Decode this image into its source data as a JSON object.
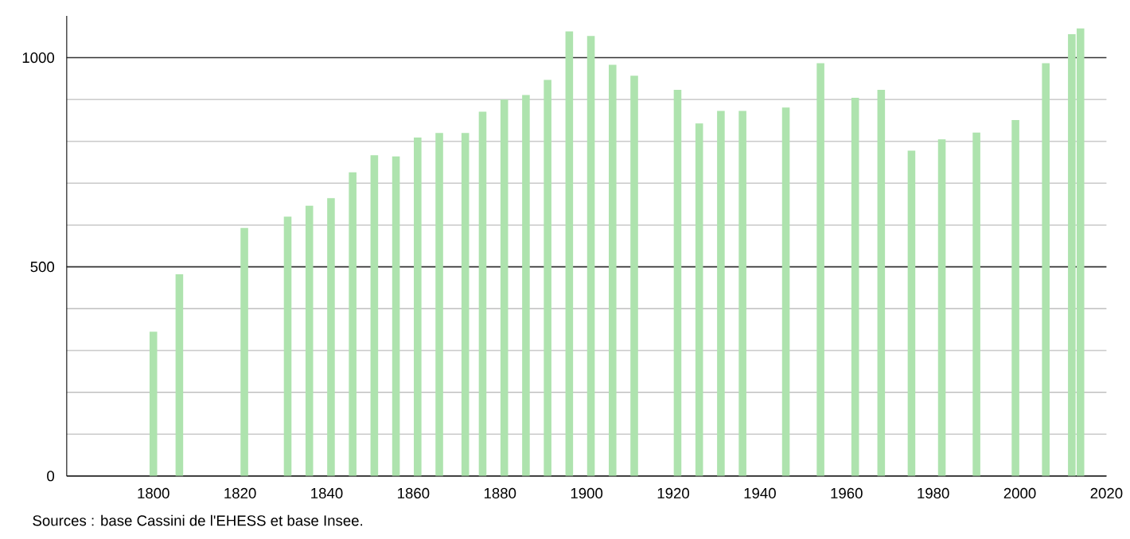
{
  "chart_data": {
    "type": "bar",
    "x": [
      1800,
      1806,
      1821,
      1831,
      1836,
      1841,
      1846,
      1851,
      1856,
      1861,
      1866,
      1872,
      1876,
      1881,
      1886,
      1891,
      1896,
      1901,
      1906,
      1911,
      1921,
      1926,
      1931,
      1936,
      1946,
      1954,
      1962,
      1968,
      1975,
      1982,
      1990,
      1999,
      2006,
      2012,
      2014
    ],
    "values": [
      345,
      482,
      593,
      620,
      646,
      664,
      726,
      767,
      764,
      809,
      820,
      820,
      871,
      900,
      911,
      947,
      1063,
      1052,
      983,
      957,
      923,
      843,
      873,
      873,
      881,
      987,
      904,
      923,
      778,
      805,
      821,
      851,
      987,
      1056,
      1070
    ],
    "color": "#aee3ae",
    "xlim": [
      1780,
      2020
    ],
    "xticks": [
      1800,
      1820,
      1840,
      1860,
      1880,
      1900,
      1920,
      1940,
      1960,
      1980,
      2000,
      2020
    ],
    "ylim": [
      0,
      1100
    ],
    "yticks": [
      0,
      500,
      1000
    ],
    "grid": "y",
    "annotations": [
      "Sources : base Cassini de l'EHESS et base Insee."
    ]
  }
}
